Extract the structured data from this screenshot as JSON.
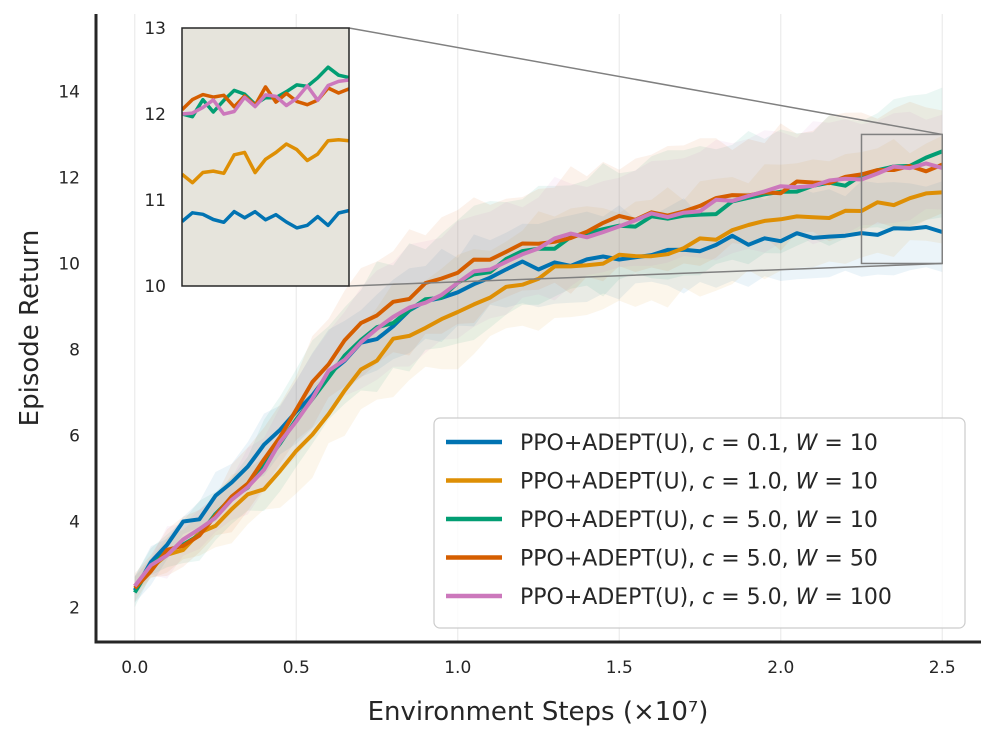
{
  "chart_data": {
    "type": "line",
    "title": "",
    "xlabel": "Environment Steps (×10⁷)",
    "ylabel": "Episode Return",
    "xlim": [
      -0.12,
      2.62
    ],
    "ylim": [
      1.2,
      15.8
    ],
    "xticks": [
      0.0,
      0.5,
      1.0,
      1.5,
      2.0,
      2.5
    ],
    "xtick_labels": [
      "0.0",
      "0.5",
      "1.0",
      "1.5",
      "2.0",
      "2.5"
    ],
    "yticks": [
      2,
      4,
      6,
      8,
      10,
      12,
      14
    ],
    "ytick_labels": [
      "2",
      "4",
      "6",
      "8",
      "10",
      "12",
      "14"
    ],
    "grid": "vertical",
    "legend_position": "lower-right",
    "bands": "shaded ± std around each series",
    "inset": {
      "x_range": [
        2.25,
        2.5
      ],
      "y_range": [
        10,
        13
      ],
      "yticks": [
        10,
        11,
        12,
        13
      ],
      "ytick_labels": [
        "10",
        "11",
        "12",
        "13"
      ]
    },
    "series": [
      {
        "name": "PPO+ADEPT(U), c = 0.1, W = 10",
        "legend_prefix": "PPO+ADEPT(U), ",
        "c": "0.1",
        "W": "10",
        "color": "#0173b2",
        "band": 1.0,
        "x": [
          0,
          0.05,
          0.1,
          0.15,
          0.2,
          0.25,
          0.3,
          0.35,
          0.4,
          0.45,
          0.5,
          0.55,
          0.6,
          0.65,
          0.7,
          0.75,
          0.8,
          0.85,
          0.9,
          0.95,
          1.0,
          1.05,
          1.1,
          1.15,
          1.2,
          1.25,
          1.3,
          1.35,
          1.4,
          1.45,
          1.5,
          1.55,
          1.6,
          1.65,
          1.7,
          1.75,
          1.8,
          1.85,
          1.9,
          1.95,
          2.0,
          2.05,
          2.1,
          2.15,
          2.2,
          2.25,
          2.3,
          2.35,
          2.4,
          2.45,
          2.5
        ],
        "values": [
          2.4,
          2.95,
          3.35,
          3.9,
          4.15,
          4.55,
          4.95,
          5.35,
          5.75,
          6.1,
          6.5,
          7.0,
          7.45,
          7.8,
          8.1,
          8.35,
          8.65,
          8.85,
          9.05,
          9.2,
          9.3,
          9.55,
          9.75,
          9.8,
          9.95,
          9.9,
          10.0,
          10.05,
          10.1,
          10.15,
          10.2,
          10.25,
          10.3,
          10.35,
          10.35,
          10.3,
          10.45,
          10.55,
          10.5,
          10.55,
          10.6,
          10.65,
          10.6,
          10.65,
          10.65,
          10.75,
          10.75,
          10.75,
          10.8,
          10.8,
          10.8
        ]
      },
      {
        "name": "PPO+ADEPT(U), c = 1.0, W = 10",
        "legend_prefix": "PPO+ADEPT(U), ",
        "c": "1.0",
        "W": "10",
        "color": "#de8f05",
        "band": 1.25,
        "x": [
          0,
          0.05,
          0.1,
          0.15,
          0.2,
          0.25,
          0.3,
          0.35,
          0.4,
          0.45,
          0.5,
          0.55,
          0.6,
          0.65,
          0.7,
          0.75,
          0.8,
          0.85,
          0.9,
          0.95,
          1.0,
          1.05,
          1.1,
          1.15,
          1.2,
          1.25,
          1.3,
          1.35,
          1.4,
          1.45,
          1.5,
          1.55,
          1.6,
          1.65,
          1.7,
          1.75,
          1.8,
          1.85,
          1.9,
          1.95,
          2.0,
          2.05,
          2.1,
          2.15,
          2.2,
          2.25,
          2.3,
          2.35,
          2.4,
          2.45,
          2.5
        ],
        "values": [
          2.5,
          2.9,
          3.2,
          3.45,
          3.65,
          3.95,
          4.25,
          4.55,
          4.85,
          5.15,
          5.55,
          6.05,
          6.55,
          7.05,
          7.5,
          7.85,
          8.15,
          8.35,
          8.55,
          8.65,
          8.8,
          9.05,
          9.25,
          9.45,
          9.6,
          9.75,
          9.85,
          9.95,
          10.0,
          10.05,
          10.1,
          10.15,
          10.25,
          10.3,
          10.4,
          10.5,
          10.6,
          10.7,
          10.8,
          10.9,
          11.0,
          11.05,
          11.1,
          11.15,
          11.2,
          11.3,
          11.4,
          11.45,
          11.5,
          11.6,
          11.65
        ]
      },
      {
        "name": "PPO+ADEPT(U), c = 5.0, W = 10",
        "legend_prefix": "PPO+ADEPT(U), ",
        "c": "5.0",
        "W": "10",
        "color": "#029e73",
        "band": 1.45,
        "x": [
          0,
          0.05,
          0.1,
          0.15,
          0.2,
          0.25,
          0.3,
          0.35,
          0.4,
          0.45,
          0.5,
          0.55,
          0.6,
          0.65,
          0.7,
          0.75,
          0.8,
          0.85,
          0.9,
          0.95,
          1.0,
          1.05,
          1.1,
          1.15,
          1.2,
          1.25,
          1.3,
          1.35,
          1.4,
          1.45,
          1.5,
          1.55,
          1.6,
          1.65,
          1.7,
          1.75,
          1.8,
          1.85,
          1.9,
          1.95,
          2.0,
          2.05,
          2.1,
          2.15,
          2.2,
          2.25,
          2.3,
          2.35,
          2.4,
          2.45,
          2.5
        ],
        "values": [
          2.35,
          3.05,
          3.3,
          3.5,
          3.75,
          4.1,
          4.45,
          4.85,
          5.25,
          5.75,
          6.35,
          6.95,
          7.4,
          7.8,
          8.15,
          8.45,
          8.7,
          8.9,
          9.1,
          9.3,
          9.5,
          9.7,
          9.9,
          10.05,
          10.2,
          10.35,
          10.45,
          10.55,
          10.65,
          10.7,
          10.8,
          10.9,
          11.0,
          11.05,
          11.1,
          11.15,
          11.25,
          11.35,
          11.45,
          11.5,
          11.6,
          11.65,
          11.75,
          11.85,
          11.9,
          12.0,
          12.1,
          12.2,
          12.3,
          12.4,
          12.5
        ]
      },
      {
        "name": "PPO+ADEPT(U), c = 5.0, W = 50",
        "legend_prefix": "PPO+ADEPT(U), ",
        "c": "5.0",
        "W": "50",
        "color": "#d55e00",
        "band": 1.35,
        "x": [
          0,
          0.05,
          0.1,
          0.15,
          0.2,
          0.25,
          0.3,
          0.35,
          0.4,
          0.45,
          0.5,
          0.55,
          0.6,
          0.65,
          0.7,
          0.75,
          0.8,
          0.85,
          0.9,
          0.95,
          1.0,
          1.05,
          1.1,
          1.15,
          1.2,
          1.25,
          1.3,
          1.35,
          1.4,
          1.45,
          1.5,
          1.55,
          1.6,
          1.65,
          1.7,
          1.75,
          1.8,
          1.85,
          1.9,
          1.95,
          2.0,
          2.05,
          2.1,
          2.15,
          2.2,
          2.25,
          2.3,
          2.35,
          2.4,
          2.45,
          2.5
        ],
        "values": [
          2.45,
          2.95,
          3.25,
          3.5,
          3.75,
          4.1,
          4.5,
          4.95,
          5.45,
          6.0,
          6.6,
          7.2,
          7.75,
          8.2,
          8.55,
          8.8,
          9.05,
          9.25,
          9.45,
          9.65,
          9.85,
          10.0,
          10.15,
          10.3,
          10.4,
          10.5,
          10.6,
          10.7,
          10.8,
          10.9,
          11.0,
          11.05,
          11.15,
          11.2,
          11.3,
          11.35,
          11.45,
          11.5,
          11.6,
          11.65,
          11.7,
          11.8,
          11.85,
          11.9,
          12.0,
          12.05,
          12.1,
          12.15,
          12.2,
          12.25,
          12.3
        ]
      },
      {
        "name": "PPO+ADEPT(U), c = 5.0, W = 100",
        "legend_prefix": "PPO+ADEPT(U), ",
        "c": "5.0",
        "W": "100",
        "color": "#cc78bc",
        "band": 1.3,
        "x": [
          0,
          0.05,
          0.1,
          0.15,
          0.2,
          0.25,
          0.3,
          0.35,
          0.4,
          0.45,
          0.5,
          0.55,
          0.6,
          0.65,
          0.7,
          0.75,
          0.8,
          0.85,
          0.9,
          0.95,
          1.0,
          1.05,
          1.1,
          1.15,
          1.2,
          1.25,
          1.3,
          1.35,
          1.4,
          1.45,
          1.5,
          1.55,
          1.6,
          1.65,
          1.7,
          1.75,
          1.8,
          1.85,
          1.9,
          1.95,
          2.0,
          2.05,
          2.1,
          2.15,
          2.2,
          2.25,
          2.3,
          2.35,
          2.4,
          2.45,
          2.5
        ],
        "values": [
          2.5,
          2.95,
          3.25,
          3.55,
          3.8,
          4.15,
          4.5,
          4.9,
          5.3,
          5.85,
          6.35,
          6.9,
          7.4,
          7.85,
          8.2,
          8.5,
          8.75,
          8.95,
          9.15,
          9.35,
          9.55,
          9.75,
          9.9,
          10.05,
          10.2,
          10.35,
          10.5,
          10.6,
          10.7,
          10.8,
          10.9,
          11.0,
          11.1,
          11.15,
          11.25,
          11.3,
          11.4,
          11.45,
          11.55,
          11.6,
          11.7,
          11.75,
          11.8,
          11.85,
          11.95,
          12.0,
          12.05,
          12.15,
          12.2,
          12.25,
          12.3
        ]
      }
    ]
  }
}
